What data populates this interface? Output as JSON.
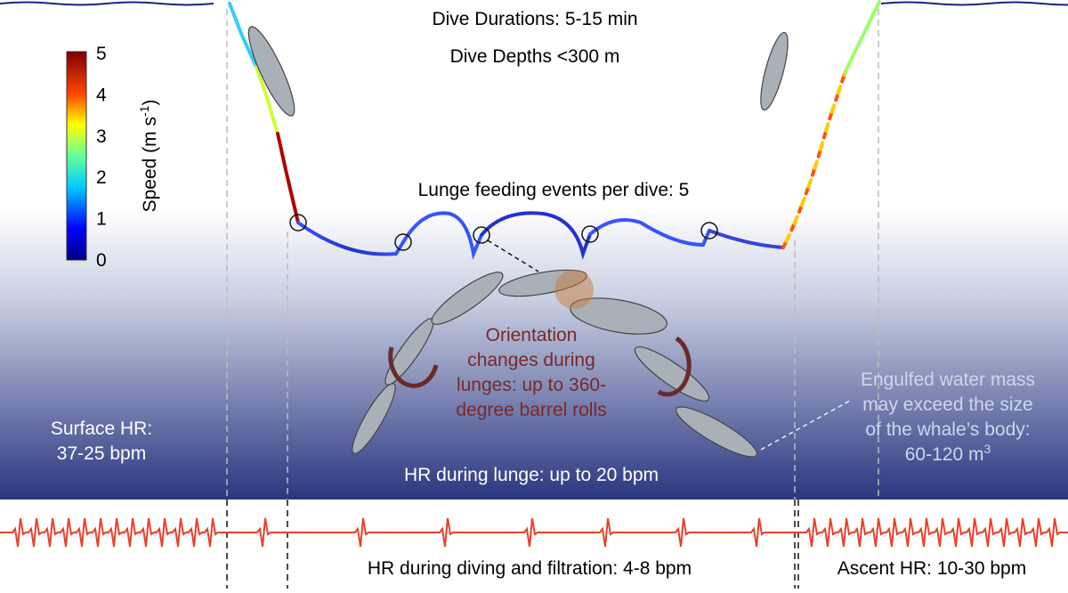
{
  "header": {
    "duration": "Dive Durations: 5-15 min",
    "depth": "Dive Depths <300 m"
  },
  "colorbar": {
    "ticks": [
      "5",
      "4",
      "3",
      "2",
      "1",
      "0"
    ],
    "label": "Speed (m s",
    "label_sup": "-1",
    "label_end": ")"
  },
  "lunge_events": "Lunge feeding events per dive: 5",
  "orientation": {
    "lines": [
      "Orientation",
      "changes during",
      "lunges: up to 360-",
      "degree barrel rolls"
    ]
  },
  "engulfed": {
    "lines": [
      "Engulfed water mass",
      "may exceed the size",
      "of the whale’s body:",
      "60-120 m"
    ],
    "sup": "3"
  },
  "surface_hr": {
    "lines": [
      "Surface HR:",
      "37-25 bpm"
    ]
  },
  "lunge_hr": "HR during lunge: up to 20 bpm",
  "diving_hr": "HR during diving and filtration: 4-8 bpm",
  "ascent_hr": "Ascent HR: 10-30 bpm"
}
